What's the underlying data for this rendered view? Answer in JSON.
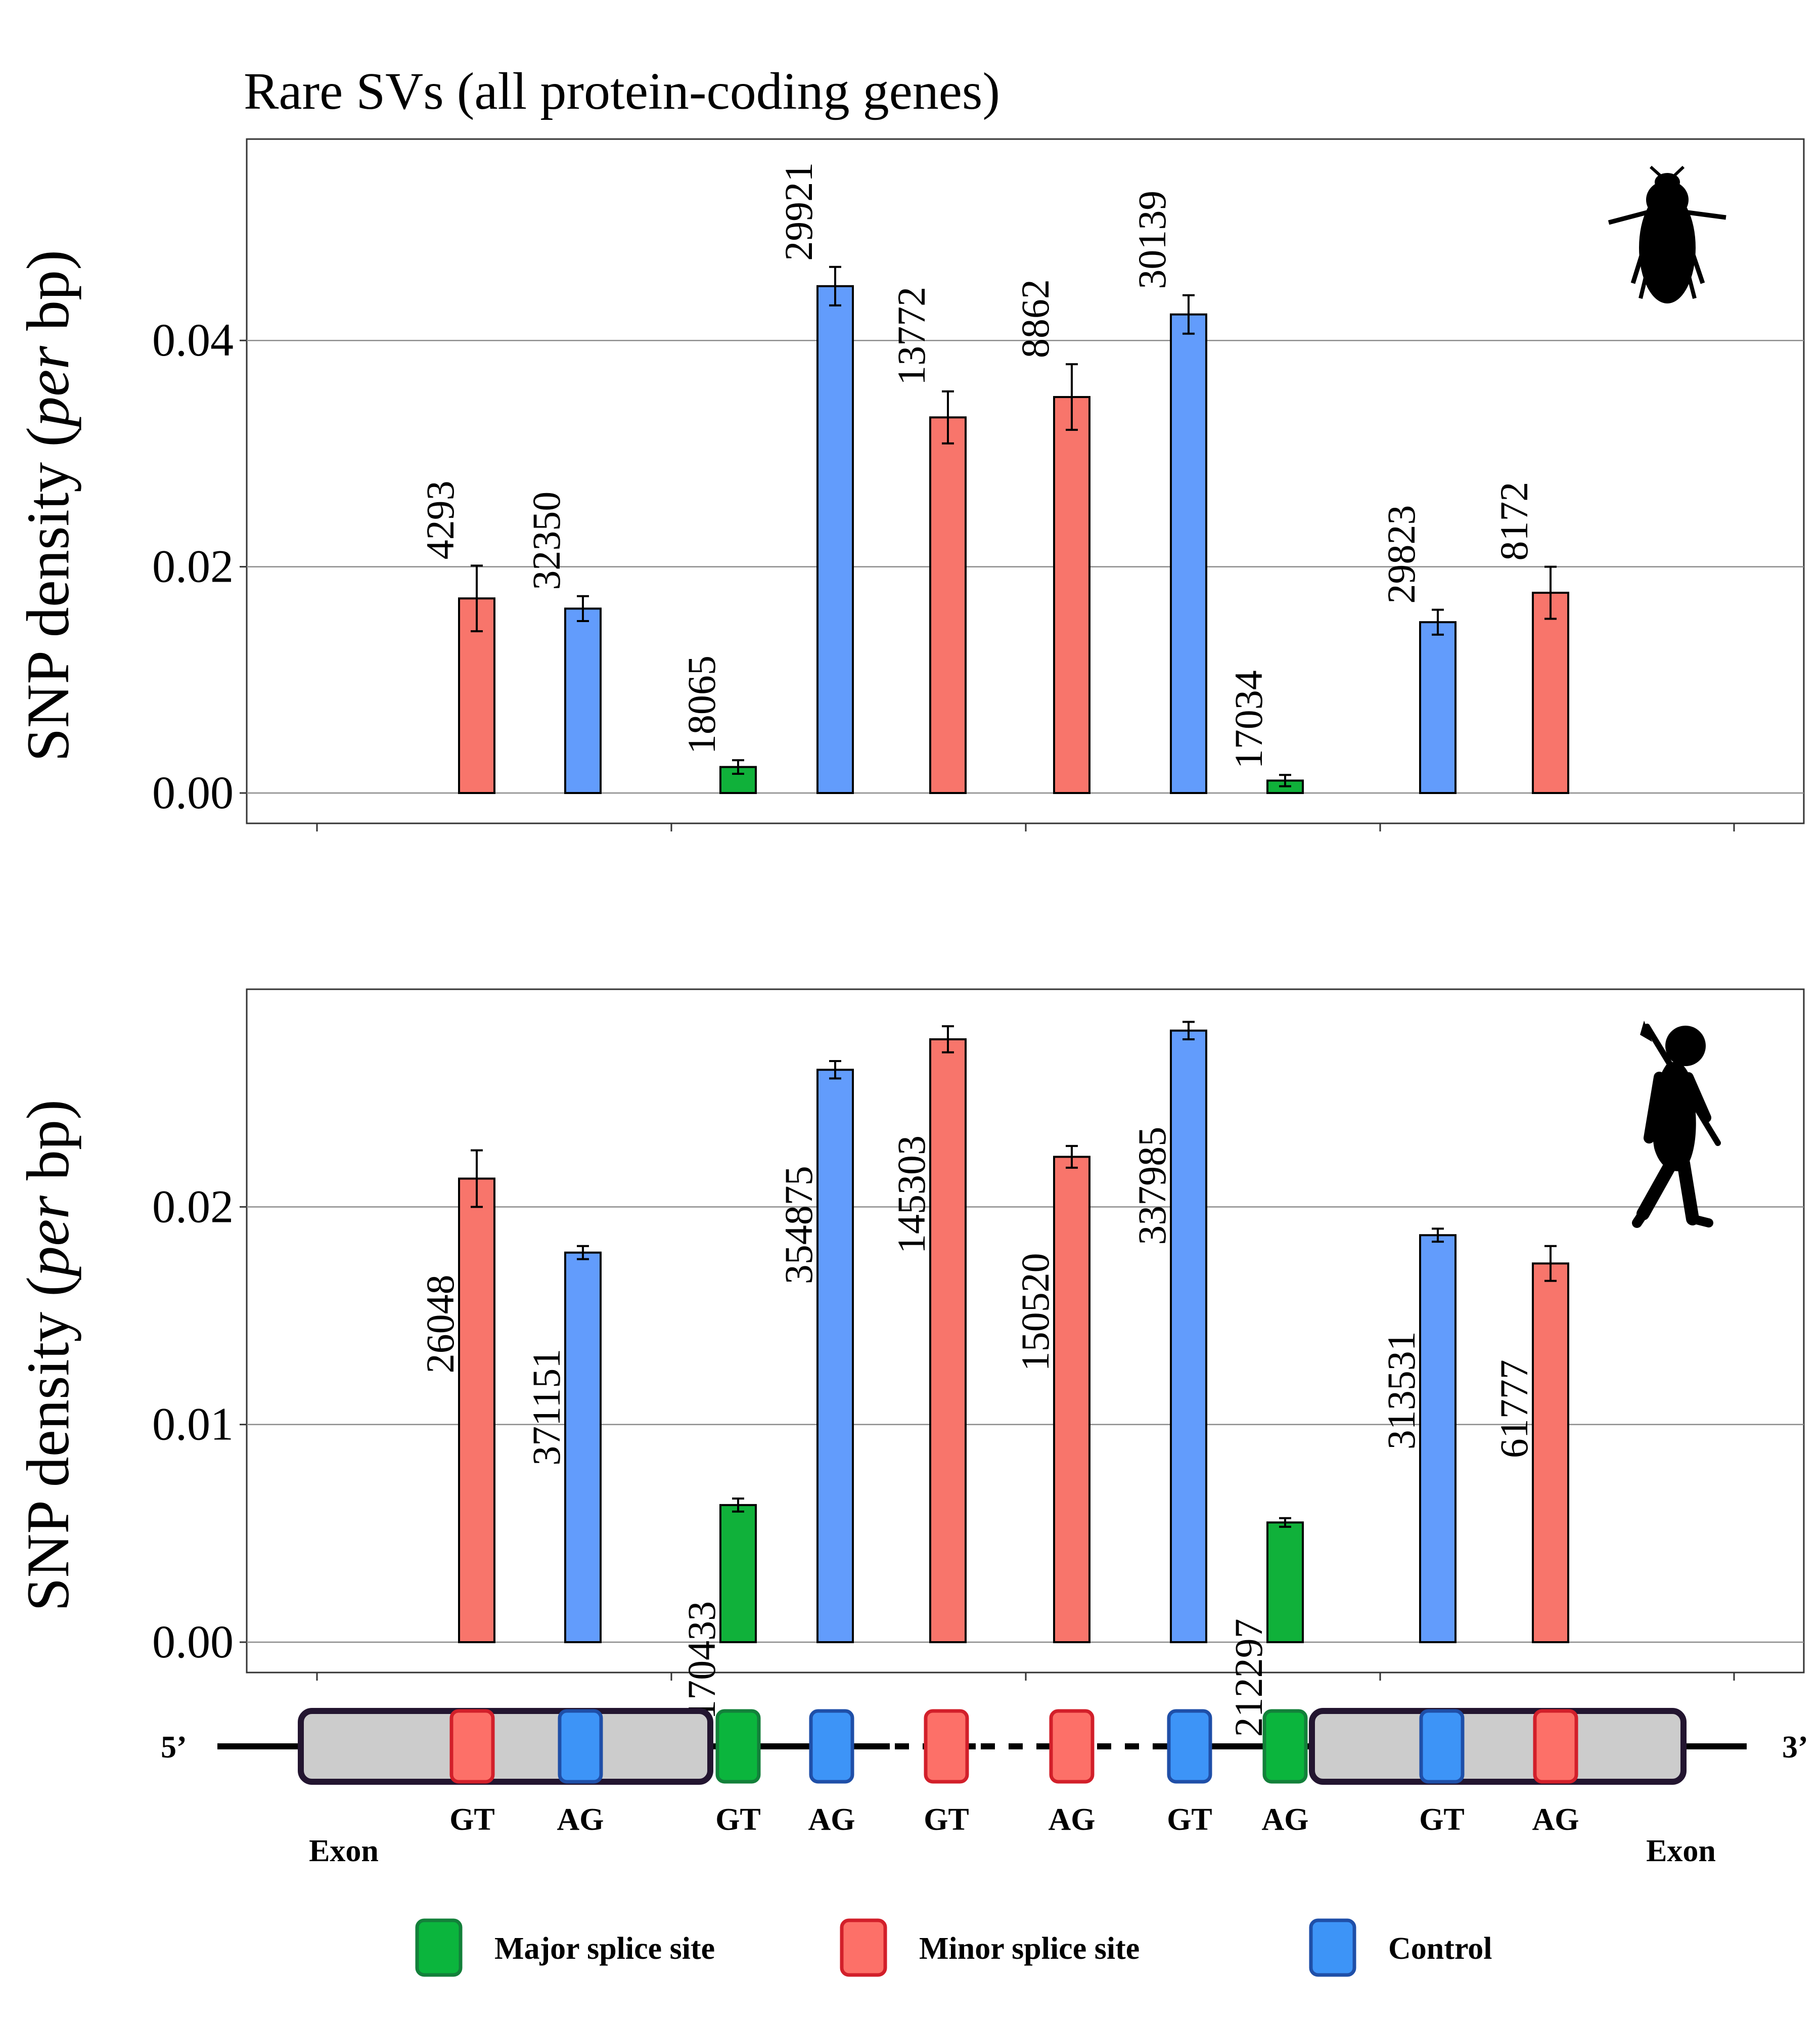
{
  "title": "Rare SVs (all protein-coding genes)",
  "colors": {
    "major": "#10b13a",
    "minor": "#f8756b",
    "control": "#629cfc",
    "major_box": "#0bb53d",
    "minor_box": "#fd7068",
    "control_box": "#3d94f7",
    "major_border": "#13803a",
    "minor_border": "#d21f2a",
    "control_border": "#1f4fa8",
    "exon_fill": "#cccccc",
    "exon_border": "#231530"
  },
  "chart_data": [
    {
      "type": "bar",
      "panel": "top",
      "icon": "beetle-silhouette-icon",
      "ylabel": "SNP density (per bp)",
      "ylim": [
        0,
        0.0578
      ],
      "yticks": [
        "0.00",
        "0.02",
        "0.04"
      ],
      "ytick_values": [
        0,
        0.02,
        0.04
      ],
      "grid": true,
      "bars": [
        {
          "category": "minor",
          "value": 0.0172,
          "error": 0.0029,
          "label": "4293"
        },
        {
          "category": "control",
          "value": 0.0163,
          "error": 0.0011,
          "label": "32350"
        },
        {
          "category": "major",
          "value": 0.0023,
          "error": 0.0006,
          "label": "18065"
        },
        {
          "category": "control",
          "value": 0.0448,
          "error": 0.0017,
          "label": "29921"
        },
        {
          "category": "minor",
          "value": 0.0332,
          "error": 0.0023,
          "label": "13772"
        },
        {
          "category": "minor",
          "value": 0.035,
          "error": 0.0029,
          "label": "8862"
        },
        {
          "category": "control",
          "value": 0.0423,
          "error": 0.0017,
          "label": "30139"
        },
        {
          "category": "major",
          "value": 0.0011,
          "error": 0.0005,
          "label": "17034"
        },
        {
          "category": "control",
          "value": 0.0151,
          "error": 0.0011,
          "label": "29823"
        },
        {
          "category": "minor",
          "value": 0.0177,
          "error": 0.0023,
          "label": "8172"
        }
      ]
    },
    {
      "type": "bar",
      "panel": "bottom",
      "icon": "hominid-silhouette-icon",
      "ylabel": "SNP density (per bp)",
      "ylim": [
        0,
        0.03
      ],
      "yticks": [
        "0.00",
        "0.01",
        "0.02"
      ],
      "ytick_values": [
        0,
        0.01,
        0.02
      ],
      "grid": true,
      "bars": [
        {
          "category": "minor",
          "value": 0.0213,
          "error": 0.0013,
          "label": "26048"
        },
        {
          "category": "control",
          "value": 0.0179,
          "error": 0.0003,
          "label": "371151"
        },
        {
          "category": "major",
          "value": 0.0063,
          "error": 0.0003,
          "label": "170433"
        },
        {
          "category": "control",
          "value": 0.0263,
          "error": 0.0004,
          "label": "354875"
        },
        {
          "category": "minor",
          "value": 0.0277,
          "error": 0.0006,
          "label": "145303"
        },
        {
          "category": "minor",
          "value": 0.0223,
          "error": 0.0005,
          "label": "150520"
        },
        {
          "category": "control",
          "value": 0.0281,
          "error": 0.0004,
          "label": "337985"
        },
        {
          "category": "major",
          "value": 0.0055,
          "error": 0.0002,
          "label": "212297"
        },
        {
          "category": "control",
          "value": 0.0187,
          "error": 0.0003,
          "label": "313531"
        },
        {
          "category": "minor",
          "value": 0.0174,
          "error": 0.0008,
          "label": "61777"
        }
      ]
    }
  ],
  "diagram": {
    "five_prime": "5’",
    "three_prime": "3’",
    "exon_label": "Exon",
    "sites": [
      {
        "type": "minor",
        "label": "GT"
      },
      {
        "type": "control",
        "label": "AG"
      },
      {
        "type": "major",
        "label": "GT"
      },
      {
        "type": "control",
        "label": "AG"
      },
      {
        "type": "minor",
        "label": "GT"
      },
      {
        "type": "minor",
        "label": "AG"
      },
      {
        "type": "control",
        "label": "GT"
      },
      {
        "type": "major",
        "label": "AG"
      },
      {
        "type": "control",
        "label": "GT"
      },
      {
        "type": "minor",
        "label": "AG"
      }
    ]
  },
  "legend": [
    {
      "type": "major",
      "label": "Major splice site"
    },
    {
      "type": "minor",
      "label": "Minor splice site"
    },
    {
      "type": "control",
      "label": "Control"
    }
  ]
}
